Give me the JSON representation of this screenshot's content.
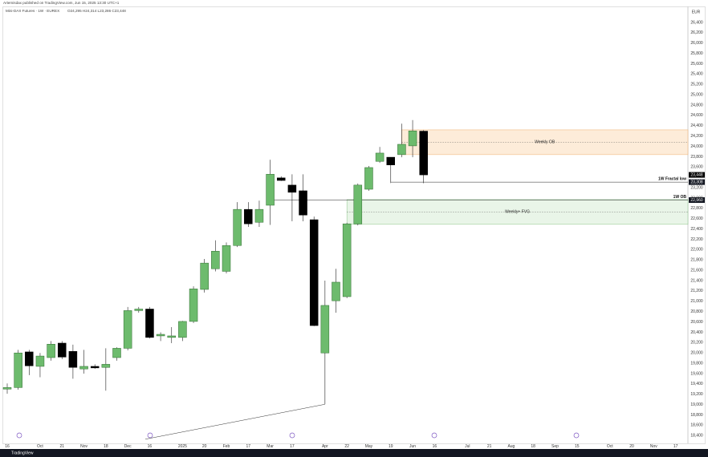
{
  "chart_data": {
    "type": "candlestick",
    "header": "Artemisdax published on TradingView.com, Jun 15, 2025 13:30 UTC+1",
    "symbol": "Mini-DAX Futures · 1W · EUREX",
    "quote": "O24,295 H24,314 L23,286 C23,448",
    "currency": "EUR",
    "footer": "TradingView",
    "up_color": "#6dbb6d",
    "down_color": "#000000",
    "categories": [
      "16",
      null,
      null,
      "Oct",
      null,
      "21",
      null,
      "Nov",
      null,
      "18",
      null,
      "Dec",
      null,
      "16",
      null,
      null,
      "2025",
      null,
      "20",
      null,
      "Feb",
      null,
      "17",
      null,
      "Mar",
      null,
      "17",
      null,
      null,
      "Apr",
      null,
      "22",
      null,
      "May",
      null,
      "19",
      null,
      "Jun",
      null,
      "16",
      null,
      null,
      "Jul",
      null,
      "21",
      null,
      "Aug",
      null,
      "18",
      null,
      "Sep",
      null,
      "15",
      null,
      null,
      "Oct",
      null,
      "20",
      null,
      "Nov",
      null,
      "17"
    ],
    "open": [
      19300,
      19330,
      20020,
      19740,
      19910,
      20190,
      20030,
      19690,
      19740,
      19720,
      19910,
      20090,
      20820,
      20850,
      20330,
      20300,
      20300,
      20610,
      21230,
      21630,
      21580,
      22080,
      22780,
      22530,
      22860,
      23390,
      23250,
      23140,
      22580,
      20000,
      21010,
      21090,
      22500,
      23170,
      23710,
      23790,
      23840,
      24010,
      24295,
      null,
      null,
      null,
      null,
      null,
      null,
      null,
      null,
      null,
      null,
      null,
      null,
      null,
      null,
      null,
      null,
      null,
      null,
      null,
      null,
      null,
      null,
      null
    ],
    "high": [
      19410,
      20060,
      20060,
      20000,
      20230,
      20230,
      20160,
      20060,
      19780,
      20090,
      20110,
      20890,
      20890,
      20890,
      20400,
      20500,
      20620,
      21290,
      21820,
      22180,
      22140,
      22920,
      22920,
      22950,
      23740,
      23420,
      23460,
      23460,
      22640,
      21400,
      21630,
      22520,
      23280,
      23620,
      23990,
      23790,
      24440,
      24510,
      24314,
      null,
      null,
      null,
      null,
      null,
      null,
      null,
      null,
      null,
      null,
      null,
      null,
      null,
      null,
      null,
      null,
      null,
      null,
      null,
      null,
      null,
      null,
      null
    ],
    "low": [
      19210,
      19290,
      19570,
      19530,
      19850,
      19880,
      19500,
      19600,
      19690,
      19270,
      19850,
      20050,
      20780,
      20280,
      20230,
      20190,
      20230,
      20580,
      21170,
      21580,
      21540,
      22050,
      22440,
      22440,
      22480,
      23330,
      22550,
      22550,
      20520,
      19010,
      20780,
      21060,
      22470,
      23140,
      23680,
      23290,
      23790,
      23790,
      23286,
      null,
      null,
      null,
      null,
      null,
      null,
      null,
      null,
      null,
      null,
      null,
      null,
      null,
      null,
      null,
      null,
      null,
      null,
      null,
      null,
      null,
      null,
      null
    ],
    "close": [
      19330,
      20000,
      19750,
      19940,
      20170,
      19920,
      19720,
      19740,
      19710,
      19780,
      20090,
      20820,
      20850,
      20300,
      20360,
      20330,
      20610,
      21240,
      21740,
      21970,
      22080,
      22780,
      22500,
      22780,
      23460,
      23340,
      23110,
      22670,
      20530,
      20920,
      21370,
      22500,
      23250,
      23590,
      23870,
      23640,
      24040,
      24300,
      23448,
      null,
      null,
      null,
      null,
      null,
      null,
      null,
      null,
      null,
      null,
      null,
      null,
      null,
      null,
      null,
      null,
      null,
      null,
      null,
      null,
      null,
      null,
      null
    ],
    "last_price": {
      "value": 23448,
      "label": "23,448"
    },
    "ylim": [
      18280,
      26710
    ],
    "yticks": [
      {
        "value": 26400,
        "label": "26,400"
      },
      {
        "value": 26200,
        "label": "26,200"
      },
      {
        "value": 26000,
        "label": "26,000"
      },
      {
        "value": 25800,
        "label": "25,800"
      },
      {
        "value": 25600,
        "label": "25,600"
      },
      {
        "value": 25400,
        "label": "25,400"
      },
      {
        "value": 25200,
        "label": "25,200"
      },
      {
        "value": 25000,
        "label": "25,000"
      },
      {
        "value": 24800,
        "label": "24,800"
      },
      {
        "value": 24600,
        "label": "24,600"
      },
      {
        "value": 24400,
        "label": "24,400"
      },
      {
        "value": 24200,
        "label": "24,200"
      },
      {
        "value": 24000,
        "label": "24,000"
      },
      {
        "value": 23800,
        "label": "23,800"
      },
      {
        "value": 23600,
        "label": "23,600"
      },
      {
        "value": 23200,
        "label": "23,200"
      },
      {
        "value": 23000,
        "label": "23,000"
      },
      {
        "value": 22800,
        "label": "22,800"
      },
      {
        "value": 22600,
        "label": "22,600"
      },
      {
        "value": 22400,
        "label": "22,400"
      },
      {
        "value": 22200,
        "label": "22,200"
      },
      {
        "value": 22000,
        "label": "22,000"
      },
      {
        "value": 21800,
        "label": "21,800"
      },
      {
        "value": 21600,
        "label": "21,600"
      },
      {
        "value": 21400,
        "label": "21,400"
      },
      {
        "value": 21200,
        "label": "21,200"
      },
      {
        "value": 21000,
        "label": "21,000"
      },
      {
        "value": 20800,
        "label": "20,800"
      },
      {
        "value": 20600,
        "label": "20,600"
      },
      {
        "value": 20400,
        "label": "20,400"
      },
      {
        "value": 20200,
        "label": "20,200"
      },
      {
        "value": 20000,
        "label": "20,000"
      },
      {
        "value": 19800,
        "label": "19,800"
      },
      {
        "value": 19600,
        "label": "19,600"
      },
      {
        "value": 19400,
        "label": "19,400"
      },
      {
        "value": 19200,
        "label": "19,200"
      },
      {
        "value": 19000,
        "label": "19,000"
      },
      {
        "value": 18800,
        "label": "18,800"
      },
      {
        "value": 18600,
        "label": "18,600"
      },
      {
        "value": 18400,
        "label": "18,400"
      }
    ],
    "zones": [
      {
        "label": "Weekly OB",
        "top": 24320,
        "bottom": 23840,
        "mid": 24080,
        "start": 36,
        "color": "#fce6cc",
        "border": "#f0b070"
      },
      {
        "label": "Weekly+ FVG",
        "top": 22970,
        "bottom": 22490,
        "mid": 22730,
        "start": 31,
        "color": "#e2f1e0",
        "border": "#8cc68a"
      }
    ],
    "levels": [
      {
        "label": "1W Fractal low",
        "value": 23308,
        "value_label": "23,308",
        "start": 35
      },
      {
        "label": "1W OB",
        "value": 22960,
        "value_label": "22,960",
        "start": 24
      }
    ],
    "trendline": {
      "x": [
        12.6,
        29
      ],
      "values": [
        18330,
        19006
      ]
    }
  }
}
